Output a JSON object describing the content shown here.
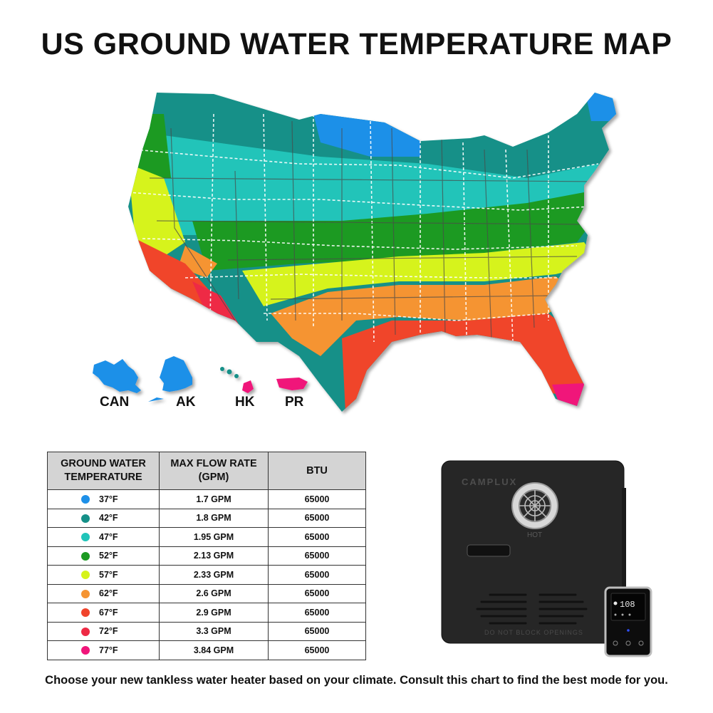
{
  "title": "US GROUND WATER TEMPERATURE MAP",
  "colors": {
    "c37": "#1e90e8",
    "c42": "#159088",
    "c47": "#21c4b9",
    "c52": "#1c9a22",
    "c57": "#d6f31a",
    "c62": "#f59432",
    "c67": "#f0442c",
    "c72": "#ee2a44",
    "c77": "#f0157a"
  },
  "map_labels": {
    "can": "CAN",
    "ak": "AK",
    "hk": "HK",
    "pr": "PR"
  },
  "table": {
    "headers": {
      "temp_line1": "GROUND WATER",
      "temp_line2": "TEMPERATURE",
      "flow_line1": "MAX FLOW RATE",
      "flow_line2": "(GPM)",
      "btu": "BTU"
    },
    "rows": [
      {
        "temp": "37°F",
        "flow": "1.7 GPM",
        "btu": "65000",
        "color": "#1e90e8"
      },
      {
        "temp": "42°F",
        "flow": "1.8 GPM",
        "btu": "65000",
        "color": "#159088"
      },
      {
        "temp": "47°F",
        "flow": "1.95 GPM",
        "btu": "65000",
        "color": "#21c4b9"
      },
      {
        "temp": "52°F",
        "flow": "2.13 GPM",
        "btu": "65000",
        "color": "#1c9a22"
      },
      {
        "temp": "57°F",
        "flow": "2.33 GPM",
        "btu": "65000",
        "color": "#d6f31a"
      },
      {
        "temp": "62°F",
        "flow": "2.6 GPM",
        "btu": "65000",
        "color": "#f59432"
      },
      {
        "temp": "67°F",
        "flow": "2.9 GPM",
        "btu": "65000",
        "color": "#f0442c"
      },
      {
        "temp": "72°F",
        "flow": "3.3 GPM",
        "btu": "65000",
        "color": "#ee2a44"
      },
      {
        "temp": "77°F",
        "flow": "3.84 GPM",
        "btu": "65000",
        "color": "#f0157a"
      }
    ]
  },
  "device": {
    "brand": "CAMPLUX",
    "hot_label": "HOT",
    "warning": "DO NOT BLOCK OPENINGS",
    "display_value": "108"
  },
  "footer": "Choose your new tankless water heater based on your climate. Consult this chart to find the best mode for you."
}
